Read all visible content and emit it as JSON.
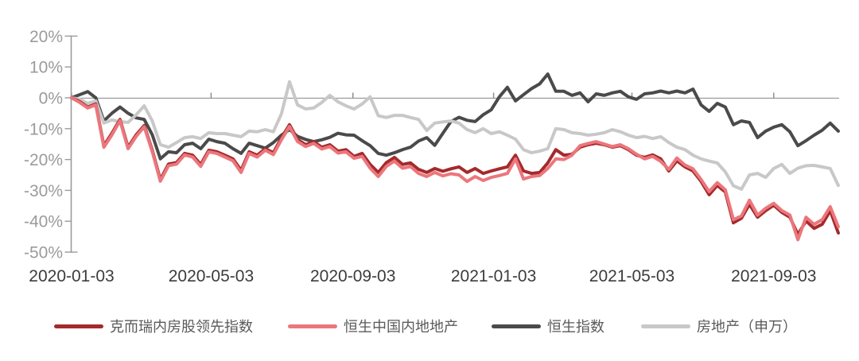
{
  "chart_data": {
    "type": "line",
    "title": "",
    "x_start_date": "2020-01-03",
    "x_interval": "weekly",
    "x_points": 96,
    "x_tick_labels": [
      "2020-01-03",
      "2020-05-03",
      "2020-09-03",
      "2021-01-03",
      "2021-05-03",
      "2021-09-03"
    ],
    "x_tick_week_positions": [
      0,
      17.29,
      34.86,
      52.29,
      69.43,
      87
    ],
    "y_tick_labels": [
      "20%",
      "10%",
      "0%",
      "-10%",
      "-20%",
      "-30%",
      "-40%",
      "-50%"
    ],
    "y_ticks": [
      20,
      10,
      0,
      -10,
      -20,
      -30,
      -40,
      -50
    ],
    "ylim": [
      -50,
      20
    ],
    "grid": "zero-line-only",
    "legend_position": "bottom",
    "draw_order": [
      2,
      3,
      0,
      1
    ],
    "series": [
      {
        "name": "克而瑞内房股领先指数",
        "color": "#A42A2C",
        "values": [
          0,
          -1.2,
          -3,
          -2,
          -15.5,
          -11.5,
          -7,
          -16,
          -12,
          -9,
          -17,
          -26.5,
          -21.5,
          -21,
          -18,
          -18.6,
          -21.6,
          -17,
          -17.5,
          -18.6,
          -19.8,
          -23.5,
          -17.5,
          -18.6,
          -16.5,
          -17.8,
          -13,
          -8.7,
          -13.5,
          -15.2,
          -14.2,
          -16,
          -15.2,
          -17.3,
          -16.8,
          -19,
          -18,
          -21.6,
          -24.2,
          -21,
          -19.3,
          -21.6,
          -21.1,
          -23.2,
          -24.2,
          -22.9,
          -23.8,
          -23,
          -22.4,
          -24.2,
          -22.9,
          -24.5,
          -23.7,
          -23,
          -22.4,
          -18.6,
          -23.7,
          -24.5,
          -24.2,
          -21.1,
          -16.8,
          -18.6,
          -18.3,
          -16,
          -15.2,
          -14.7,
          -15.2,
          -16,
          -15.5,
          -16.8,
          -18.6,
          -19.3,
          -18.5,
          -19.8,
          -23.7,
          -20.4,
          -22.4,
          -23.7,
          -27.1,
          -31.4,
          -28.4,
          -30.5,
          -40.5,
          -39,
          -34.5,
          -38.7,
          -36.6,
          -34.8,
          -37.1,
          -38.7,
          -44.3,
          -39.9,
          -42.3,
          -41,
          -36.6,
          -43.8
        ]
      },
      {
        "name": "恒生中国内地地产",
        "color": "#EB767C",
        "values": [
          0,
          -1.5,
          -3.3,
          -2.3,
          -16,
          -12,
          -7.4,
          -16.5,
          -12.5,
          -9.4,
          -17.5,
          -27,
          -22,
          -21.5,
          -18.5,
          -19.2,
          -22.2,
          -17.5,
          -18,
          -19.2,
          -20.4,
          -24.2,
          -18,
          -19.2,
          -17,
          -18.4,
          -13.6,
          -9.3,
          -14.2,
          -15.8,
          -14.8,
          -16.6,
          -15.8,
          -17.9,
          -17.5,
          -19.6,
          -19,
          -22.8,
          -25.5,
          -22.2,
          -20.5,
          -22.8,
          -22.3,
          -24.5,
          -25.5,
          -24.2,
          -25.3,
          -24.6,
          -25,
          -27.1,
          -25.5,
          -26.8,
          -25.8,
          -25.2,
          -24.5,
          -19.8,
          -26.3,
          -25.5,
          -25.2,
          -22.9,
          -19.8,
          -20,
          -18.6,
          -15.5,
          -14.8,
          -14.2,
          -15,
          -15.8,
          -15.2,
          -16.5,
          -18.3,
          -19.8,
          -19,
          -20.6,
          -23.2,
          -19.5,
          -21.8,
          -23,
          -26.5,
          -30.4,
          -27.5,
          -29.8,
          -39.5,
          -38.3,
          -33.2,
          -38,
          -35.8,
          -34.2,
          -36.5,
          -38,
          -46,
          -38.7,
          -41,
          -39.5,
          -35.3,
          -41.8
        ]
      },
      {
        "name": "恒生指数",
        "color": "#4A4A4A",
        "values": [
          0,
          1,
          2,
          0,
          -7.5,
          -5,
          -3,
          -5,
          -6.5,
          -7,
          -12,
          -19.8,
          -17.5,
          -17.8,
          -15.2,
          -14.7,
          -16.5,
          -13.4,
          -14.2,
          -14.7,
          -16.5,
          -18,
          -14.7,
          -15.5,
          -16.3,
          -14.5,
          -12.1,
          -10.3,
          -12.5,
          -13.5,
          -14.2,
          -13.6,
          -12.8,
          -11.5,
          -12,
          -12.1,
          -13.9,
          -15.5,
          -18,
          -18.6,
          -17.8,
          -16.8,
          -16,
          -14,
          -12.9,
          -15.4,
          -11.5,
          -7.7,
          -6.3,
          -7.3,
          -7.7,
          -5.5,
          -3.9,
          0.3,
          3.4,
          -1,
          1,
          3,
          4.5,
          7.7,
          2.1,
          2.1,
          0.8,
          1.6,
          -1.3,
          1.3,
          0.8,
          1.6,
          2.1,
          0.3,
          -0.5,
          1.3,
          1.6,
          2.2,
          1.6,
          2.2,
          1.6,
          2.8,
          -2.3,
          -4.4,
          -1.8,
          -3,
          -8.7,
          -7.5,
          -8,
          -12.9,
          -10.8,
          -9.5,
          -8.7,
          -11,
          -15.5,
          -13.9,
          -12.1,
          -10.5,
          -8.2,
          -10.8
        ]
      },
      {
        "name": "房地产（申万）",
        "color": "#C8C8C8",
        "values": [
          0,
          -0.5,
          -1.8,
          -1,
          -8.2,
          -7.2,
          -7.7,
          -8,
          -5.5,
          -2.6,
          -7.5,
          -15.2,
          -16,
          -14.5,
          -12.9,
          -12.6,
          -13.2,
          -11.3,
          -11.6,
          -11.6,
          -12.1,
          -12.6,
          -10.8,
          -11,
          -10.3,
          -11,
          -5.2,
          5.2,
          -2.3,
          -3.6,
          -3.3,
          -1.5,
          0.8,
          -1.3,
          -2.6,
          -3.6,
          -2,
          0.3,
          -5.8,
          -6.4,
          -5.7,
          -5.7,
          -6.4,
          -7,
          -10.6,
          -8.2,
          -7.8,
          -7.5,
          -8.2,
          -10.3,
          -11.3,
          -10,
          -11.6,
          -11,
          -12.1,
          -13.4,
          -16.8,
          -17.8,
          -17.3,
          -16.5,
          -10,
          -10.3,
          -11.3,
          -11.6,
          -12.1,
          -11.8,
          -11.3,
          -10.3,
          -11,
          -12.1,
          -12.9,
          -12.5,
          -13.2,
          -12.6,
          -14.5,
          -16,
          -16.8,
          -18.6,
          -19.8,
          -20.5,
          -21.1,
          -24,
          -28.5,
          -29.6,
          -25,
          -24.5,
          -25.8,
          -22.9,
          -21.6,
          -24.5,
          -22.8,
          -22,
          -21.9,
          -22.4,
          -22.9,
          -28.4
        ]
      }
    ]
  },
  "colors": {
    "background": "#FFFFFF",
    "axis_line": "#9B9B9B",
    "zero_line": "#999999",
    "x_tick_mark": "#888888",
    "y_label_text": "#9B9B9B",
    "x_label_text": "#3C3C3C",
    "legend_text": "#5A5A5A"
  }
}
